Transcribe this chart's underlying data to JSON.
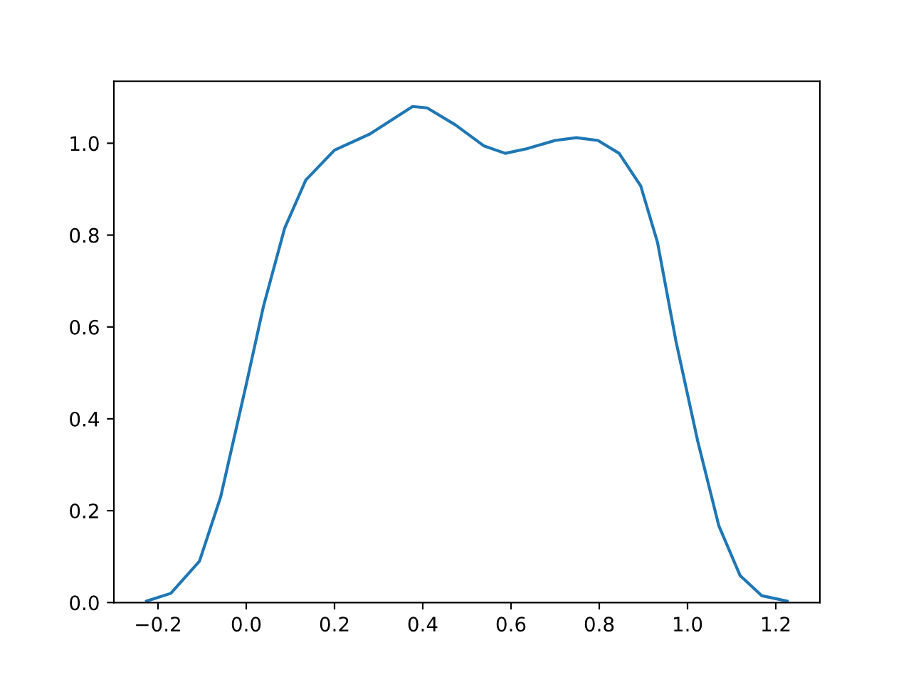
{
  "chart_data": {
    "type": "line",
    "color": "#1f77b4",
    "x": [
      -0.226,
      -0.171,
      -0.106,
      -0.058,
      0.0,
      0.039,
      0.087,
      0.135,
      0.2,
      0.28,
      0.377,
      0.41,
      0.474,
      0.539,
      0.587,
      0.635,
      0.7,
      0.748,
      0.797,
      0.845,
      0.894,
      0.932,
      0.974,
      1.023,
      1.071,
      1.119,
      1.168,
      1.226
    ],
    "values": [
      0.003,
      0.02,
      0.09,
      0.23,
      0.475,
      0.645,
      0.815,
      0.92,
      0.985,
      1.02,
      1.08,
      1.077,
      1.04,
      0.994,
      0.978,
      0.988,
      1.006,
      1.012,
      1.006,
      0.978,
      0.907,
      0.784,
      0.568,
      0.352,
      0.167,
      0.059,
      0.015,
      0.003
    ],
    "xlim": [
      -0.3,
      1.3
    ],
    "xticks": [
      {
        "value": -0.2,
        "label": "−0.2"
      },
      {
        "value": 0.0,
        "label": "0.0"
      },
      {
        "value": 0.2,
        "label": "0.2"
      },
      {
        "value": 0.4,
        "label": "0.4"
      },
      {
        "value": 0.6,
        "label": "0.6"
      },
      {
        "value": 0.8,
        "label": "0.8"
      },
      {
        "value": 1.0,
        "label": "1.0"
      },
      {
        "value": 1.2,
        "label": "1.2"
      }
    ],
    "ylim": [
      0,
      1.135
    ],
    "yticks": [
      {
        "value": 0.0,
        "label": "0.0"
      },
      {
        "value": 0.2,
        "label": "0.2"
      },
      {
        "value": 0.4,
        "label": "0.4"
      },
      {
        "value": 0.6,
        "label": "0.6"
      },
      {
        "value": 0.8,
        "label": "0.8"
      },
      {
        "value": 1.0,
        "label": "1.0"
      }
    ],
    "grid": false,
    "marker": "none",
    "line_style": "solid"
  }
}
